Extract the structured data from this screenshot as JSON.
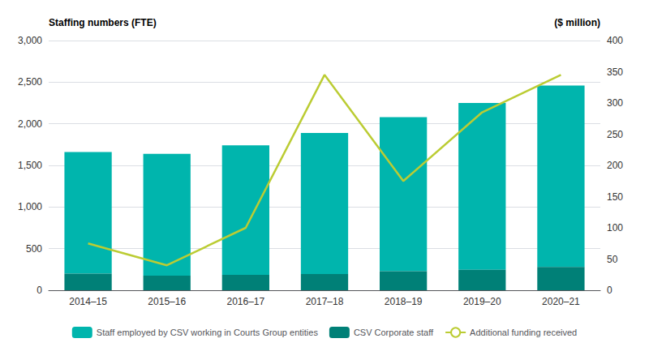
{
  "chart_data": {
    "type": "bar",
    "categories": [
      "2014–15",
      "2015–16",
      "2016–17",
      "2017–18",
      "2018–19",
      "2019–20",
      "2020–21"
    ],
    "series": [
      {
        "name": "Staff employed by CSV working in Courts Group entities",
        "type": "bar",
        "color": "#00B5AD",
        "values": [
          1460,
          1465,
          1555,
          1695,
          1850,
          2005,
          2180
        ]
      },
      {
        "name": "CSV Corporate staff",
        "type": "bar",
        "color": "#008077",
        "values": [
          200,
          175,
          185,
          195,
          230,
          245,
          280
        ]
      },
      {
        "name": "Additional funding received",
        "type": "line",
        "color": "#BBCC33",
        "axis": "y2",
        "values": [
          75,
          40,
          100,
          345,
          175,
          285,
          345
        ]
      }
    ],
    "stacked": true,
    "ylabel": "Staffing numbers (FTE)",
    "y2label": "($ million)",
    "ylim": [
      0,
      3000
    ],
    "yticks": [
      0,
      500,
      1000,
      1500,
      2000,
      2500,
      3000
    ],
    "y2lim": [
      0,
      400
    ],
    "y2ticks": [
      0,
      50,
      100,
      150,
      200,
      250,
      300,
      350,
      400
    ],
    "grid": true,
    "legend": "bottom"
  }
}
